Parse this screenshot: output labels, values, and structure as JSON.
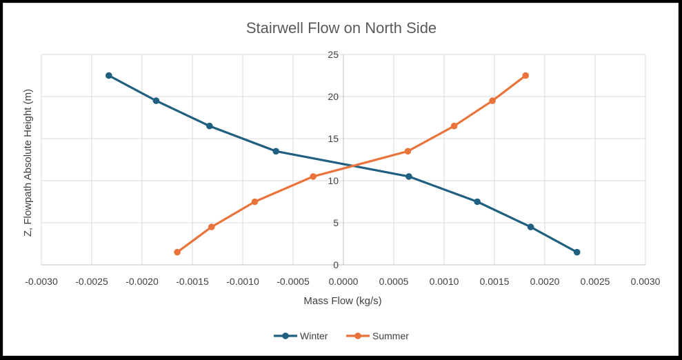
{
  "chart_data": {
    "type": "scatter",
    "title": "Stairwell Flow on North Side",
    "xlabel": "Mass Flow (kg/s)",
    "ylabel": "Z, Flowpath Absolute Height (m)",
    "xlim": [
      -0.003,
      0.003
    ],
    "ylim": [
      0,
      25
    ],
    "x_ticks": [
      "-0.0030",
      "-0.0025",
      "-0.0020",
      "-0.0015",
      "-0.0010",
      "-0.0005",
      "0.0000",
      "0.0005",
      "0.0010",
      "0.0015",
      "0.0020",
      "0.0025",
      "0.0030"
    ],
    "y_ticks": [
      "0",
      "5",
      "10",
      "15",
      "20",
      "25"
    ],
    "grid": true,
    "legend_position": "bottom",
    "series": [
      {
        "name": "Winter",
        "color": "#1f5f7f",
        "x": [
          0.00232,
          0.00186,
          0.00133,
          0.00065,
          -0.00067,
          -0.00133,
          -0.00186,
          -0.00233
        ],
        "y": [
          1.5,
          4.5,
          7.5,
          10.5,
          13.5,
          16.5,
          19.5,
          22.5
        ]
      },
      {
        "name": "Summer",
        "color": "#e8743b",
        "x": [
          -0.00165,
          -0.00131,
          -0.00088,
          -0.0003,
          0.00064,
          0.0011,
          0.00148,
          0.00181
        ],
        "y": [
          1.5,
          4.5,
          7.5,
          10.5,
          13.5,
          16.5,
          19.5,
          22.5
        ]
      }
    ]
  }
}
